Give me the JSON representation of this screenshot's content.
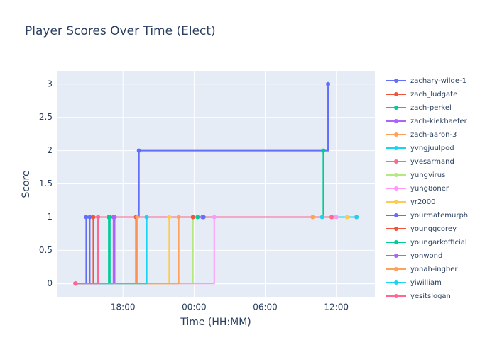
{
  "chart_data": {
    "type": "line",
    "line_shape": "hv",
    "title": "Player Scores Over Time (Elect)",
    "x_label": "Time (HH:MM)",
    "y_label": "Score",
    "xlim": [
      12.42,
      39.25
    ],
    "xticks": [
      {
        "value": 18,
        "label": "18:00"
      },
      {
        "value": 24,
        "label": "00:00"
      },
      {
        "value": 30,
        "label": "06:00"
      },
      {
        "value": 36,
        "label": "12:00"
      }
    ],
    "ylim": [
      -0.21,
      3.2
    ],
    "yticks": [
      0,
      0.5,
      1,
      1.5,
      2,
      2.5,
      3
    ],
    "grid": true,
    "series": [
      {
        "name": "zachary-wilde-1",
        "color": "#636efa",
        "x": [
          14.0,
          14.9,
          19.35,
          35.3
        ],
        "values": [
          0,
          1,
          2,
          3
        ]
      },
      {
        "name": "zach_ludgate",
        "color": "#ef553b",
        "x": [
          14.0,
          19.1
        ],
        "values": [
          0,
          1
        ]
      },
      {
        "name": "zach-perkel",
        "color": "#00cc96",
        "x": [
          14.0,
          16.9,
          34.9
        ],
        "values": [
          0,
          1,
          2
        ]
      },
      {
        "name": "zach-kiekhaefer",
        "color": "#ab63fa",
        "x": [
          14.0,
          17.3,
          24.7
        ],
        "values": [
          0,
          1,
          1
        ]
      },
      {
        "name": "zach-aaron-3",
        "color": "#ffa15a",
        "x": [
          14.0,
          19.2,
          34.0
        ],
        "values": [
          0,
          1,
          1
        ]
      },
      {
        "name": "yvngjuulpod",
        "color": "#19d3f3",
        "x": [
          14.0,
          20.0,
          34.8
        ],
        "values": [
          0,
          1,
          1
        ]
      },
      {
        "name": "yvesarmand",
        "color": "#ff6692",
        "x": [
          14.0,
          15.9,
          35.6
        ],
        "values": [
          0,
          1,
          1
        ]
      },
      {
        "name": "yungvirus",
        "color": "#b6e880",
        "x": [
          14.0,
          23.9,
          35.8
        ],
        "values": [
          0,
          1,
          1
        ]
      },
      {
        "name": "yung8oner",
        "color": "#ff97ff",
        "x": [
          14.0,
          25.7,
          36.0
        ],
        "values": [
          0,
          1,
          1
        ]
      },
      {
        "name": "yr2000",
        "color": "#fecb52",
        "x": [
          14.0,
          21.9,
          36.9
        ],
        "values": [
          0,
          1,
          1
        ]
      },
      {
        "name": "yourmatemurph",
        "color": "#636efa",
        "x": [
          14.0,
          15.2,
          24.8
        ],
        "values": [
          0,
          1,
          1
        ]
      },
      {
        "name": "younggcorey",
        "color": "#ef553b",
        "x": [
          14.0,
          15.5,
          23.9
        ],
        "values": [
          0,
          1,
          1
        ]
      },
      {
        "name": "youngarkofficial",
        "color": "#00cc96",
        "x": [
          14.0,
          16.8,
          24.3
        ],
        "values": [
          0,
          1,
          1
        ]
      },
      {
        "name": "yonwond",
        "color": "#ab63fa",
        "x": [
          14.0,
          17.2,
          37.7
        ],
        "values": [
          0,
          1,
          1
        ]
      },
      {
        "name": "yonah-ingber",
        "color": "#ffa15a",
        "x": [
          14.0,
          22.7,
          37.7
        ],
        "values": [
          0,
          1,
          1
        ]
      },
      {
        "name": "yiwilliam",
        "color": "#19d3f3",
        "x": [
          14.0,
          20.0,
          37.7
        ],
        "values": [
          0,
          1,
          1
        ]
      },
      {
        "name": "yesitslogan",
        "color": "#ff6692",
        "x": [
          14.0,
          15.9,
          35.6
        ],
        "values": [
          0,
          1,
          1
        ]
      }
    ]
  }
}
